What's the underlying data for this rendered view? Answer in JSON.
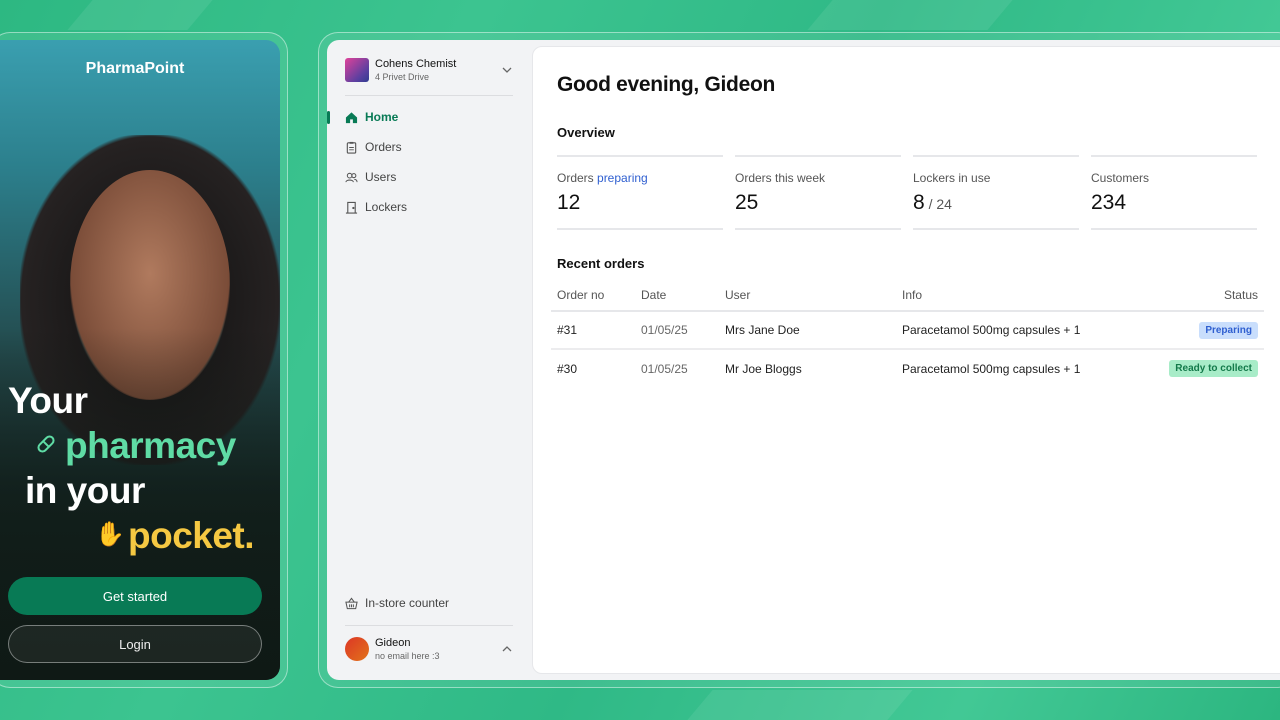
{
  "brand": "PharmaPoint",
  "hero": {
    "line1": "Your",
    "line2": "pharmacy",
    "line3": "in your",
    "line4": "pocket.",
    "accent_green": "#5fdca5",
    "accent_yellow": "#f5c842"
  },
  "auth": {
    "get_started": "Get started",
    "login": "Login"
  },
  "store": {
    "name": "Cohens Chemist",
    "address": "4 Privet Drive"
  },
  "nav": [
    {
      "label": "Home",
      "icon": "home-icon",
      "active": true
    },
    {
      "label": "Orders",
      "icon": "clipboard-icon"
    },
    {
      "label": "Users",
      "icon": "users-icon"
    },
    {
      "label": "Lockers",
      "icon": "door-icon"
    }
  ],
  "counter": "In-store counter",
  "user": {
    "name": "Gideon",
    "email": "no email here :3"
  },
  "greeting": "Good evening, Gideon",
  "overview": {
    "title": "Overview",
    "stats": [
      {
        "label": "Orders ",
        "label_accent": "preparing",
        "value": "12"
      },
      {
        "label": "Orders this week",
        "value": "25"
      },
      {
        "label": "Lockers in use",
        "value": "8",
        "sub": " / 24"
      },
      {
        "label": "Customers",
        "value": "234"
      }
    ]
  },
  "recent": {
    "title": "Recent orders",
    "columns": [
      "Order no",
      "Date",
      "User",
      "Info",
      "Status"
    ],
    "rows": [
      {
        "no": "#31",
        "date": "01/05/25",
        "user": "Mrs Jane Doe",
        "info": "Paracetamol 500mg capsules + 1",
        "status": "Preparing"
      },
      {
        "no": "#30",
        "date": "01/05/25",
        "user": "Mr Joe Bloggs",
        "info": "Paracetamol 500mg capsules + 1",
        "status": "Ready to collect"
      }
    ]
  },
  "colors": {
    "primary": "#087a55",
    "preparing_bg": "#c9defc",
    "preparing_fg": "#2f5fd0",
    "ready_bg": "#a8ecc8",
    "ready_fg": "#137a4a"
  }
}
